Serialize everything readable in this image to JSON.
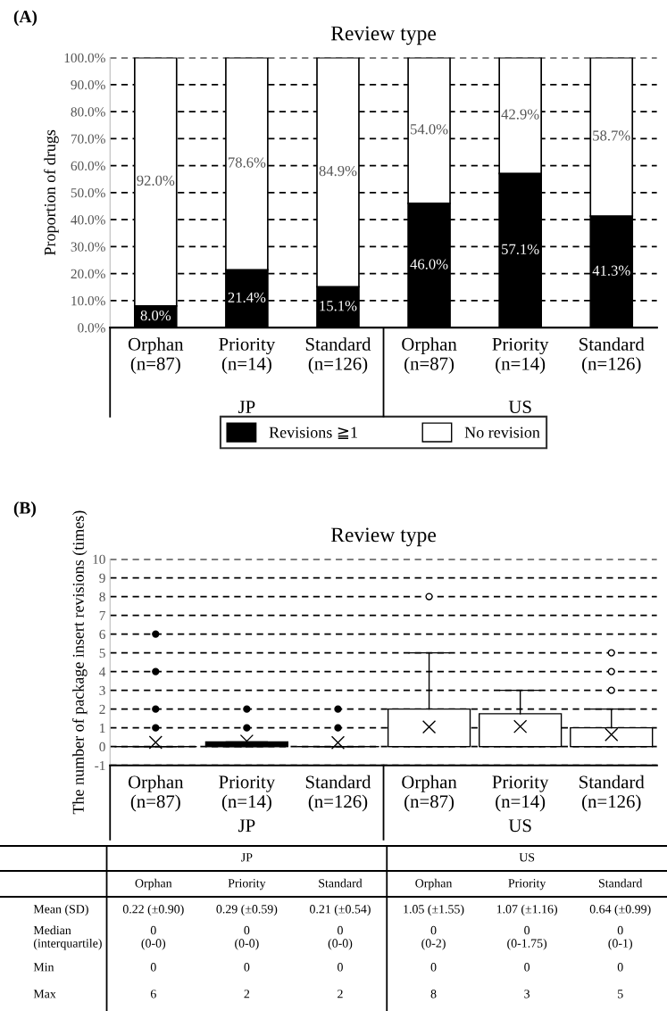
{
  "chart_data": [
    {
      "type": "bar",
      "stacked": true,
      "title": "Review type",
      "ylabel": "Proportion of drugs",
      "categories": [
        "Orphan\n(n=87)",
        "Priority\n(n=14)",
        "Standard\n(n=126)",
        "Orphan\n(n=87)",
        "Priority\n(n=14)",
        "Standard\n(n=126)"
      ],
      "series": [
        {
          "name": "Revisions ≧1",
          "color": "#000000",
          "values": [
            8.0,
            21.4,
            15.1,
            46.0,
            57.1,
            41.3
          ],
          "value_labels": [
            "8.0%",
            "21.4%",
            "15.1%",
            "46.0%",
            "57.1%",
            "41.3%"
          ]
        },
        {
          "name": "No revision",
          "color": "#ffffff",
          "values": [
            92.0,
            78.6,
            84.9,
            54.0,
            42.9,
            58.7
          ],
          "value_labels": [
            "92.0%",
            "78.6%",
            "84.9%",
            "54.0%",
            "42.9%",
            "58.7%"
          ]
        }
      ],
      "ylim": [
        0,
        100
      ],
      "yticks": [
        {
          "value": 0,
          "label": "0.0%"
        },
        {
          "value": 10,
          "label": "10.0%"
        },
        {
          "value": 20,
          "label": "20.0%"
        },
        {
          "value": 30,
          "label": "30.0%"
        },
        {
          "value": 40,
          "label": "40.0%"
        },
        {
          "value": 50,
          "label": "50.0%"
        },
        {
          "value": 60,
          "label": "60.0%"
        },
        {
          "value": 70,
          "label": "70.0%"
        },
        {
          "value": 80,
          "label": "80.0%"
        },
        {
          "value": 90,
          "label": "90.0%"
        },
        {
          "value": 100,
          "label": "100.0%"
        }
      ],
      "grid": "y",
      "legend": "bottom",
      "annotations": [
        "(A)",
        "JP",
        "US"
      ]
    },
    {
      "type": "box",
      "title": "Review type",
      "ylabel": "The number of package insert revisions (times)",
      "categories": [
        "Orphan\n(n=87)",
        "Priority\n(n=14)",
        "Standard\n(n=126)",
        "Orphan\n(n=87)",
        "Priority\n(n=14)",
        "Standard\n(n=126)"
      ],
      "boxes": [
        {
          "low": 0,
          "q1": 0,
          "median": 0,
          "q3": 0,
          "high": 0,
          "mean": 0.22,
          "outliers": [
            1,
            2,
            4,
            6
          ]
        },
        {
          "low": 0,
          "q1": 0,
          "median": 0,
          "q3": 0.25,
          "high": 0.25,
          "mean": 0.29,
          "outliers": [
            1,
            2
          ]
        },
        {
          "low": 0,
          "q1": 0,
          "median": 0,
          "q3": 0,
          "high": 0,
          "mean": 0.21,
          "outliers": [
            1,
            2
          ]
        },
        {
          "low": 0,
          "q1": 0,
          "median": 0,
          "q3": 2,
          "high": 5,
          "mean": 1.05,
          "outliers": [
            8
          ]
        },
        {
          "low": 0,
          "q1": 0,
          "median": 0,
          "q3": 1.75,
          "high": 3,
          "mean": 1.07
        },
        {
          "low": 0,
          "q1": 0,
          "median": 0,
          "q3": 1,
          "high": 2,
          "mean": 0.64,
          "outliers": [
            3,
            4,
            5
          ]
        }
      ],
      "colors": [
        "#000000",
        "#000000",
        "#000000",
        "#ffffff",
        "#ffffff",
        "#ffffff"
      ],
      "ylim": [
        -1,
        10
      ],
      "yticks": [
        -1,
        0,
        1,
        2,
        3,
        4,
        5,
        6,
        7,
        8,
        9,
        10
      ],
      "grid": "y",
      "annotations": [
        "(B)",
        "JP",
        "US",
        "JP",
        "US",
        "Orphan",
        "Priority",
        "Standard",
        "Orphan",
        "Priority",
        "Standard",
        "Mean (SD)",
        "0.22 (±0.90)",
        "0.29 (±0.59)",
        "0.21 (±0.54)",
        "1.05 (±1.55)",
        "1.07 (±1.16)",
        "0.64 (±0.99)",
        "Median\n(interquartile)",
        "0\n(0-0)",
        "0\n(0-0)",
        "0\n(0-0)",
        "0\n(0-2)",
        "0\n(0-1.75)",
        "0\n(0-1)",
        "Min",
        "0",
        "0",
        "0",
        "0",
        "0",
        "0",
        "Max",
        "6",
        "2",
        "2",
        "8",
        "3",
        "5"
      ]
    }
  ]
}
